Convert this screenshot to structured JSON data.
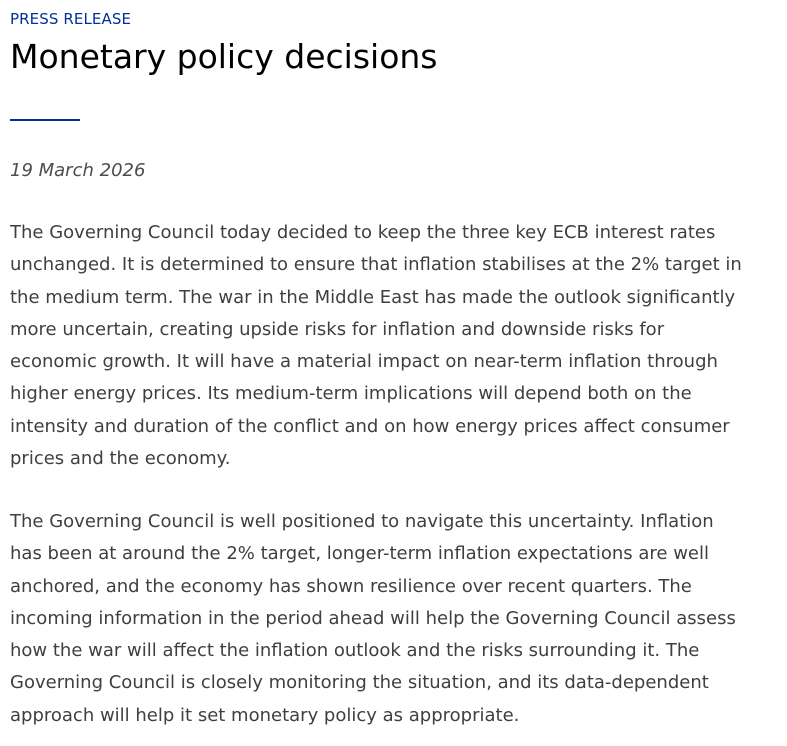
{
  "header": {
    "kicker": "PRESS RELEASE",
    "title": "Monetary policy decisions"
  },
  "date": "19 March 2026",
  "paragraphs": [
    {
      "lines": [
        "The Governing Council today decided to keep the three key ECB interest rates",
        "unchanged. It is determined to ensure that inflation stabilises at the 2% target in",
        "the medium term. The war in the Middle East has made the outlook significantly",
        "more uncertain, creating upside risks for inflation and downside risks for",
        "economic growth. It will have a material impact on near-term inflation through",
        "higher energy prices. Its medium-term implications will depend both on the",
        "intensity and duration of the conflict and on how energy prices affect consumer",
        "prices and the economy."
      ]
    },
    {
      "lines": [
        "The Governing Council is well positioned to navigate this uncertainty. Inflation",
        "has been at around the 2% target, longer-term inflation expectations are well",
        "anchored, and the economy has shown resilience over recent quarters. The",
        "incoming information in the period ahead will help the Governing Council assess",
        "how the war will affect the inflation outlook and the risks surrounding it. The",
        "Governing Council is closely monitoring the situation, and its data-dependent",
        "approach will help it set monetary policy as appropriate."
      ]
    }
  ],
  "colors": {
    "accent": "#003299",
    "title": "#000000",
    "body": "#3f3f3f"
  }
}
